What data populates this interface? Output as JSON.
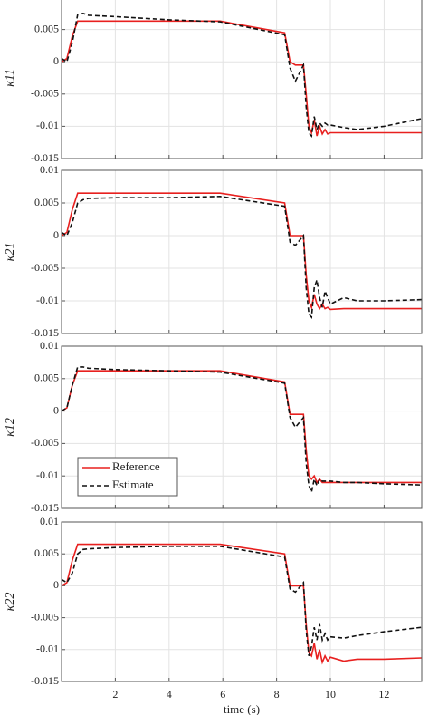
{
  "chart_data": [
    {
      "type": "line",
      "ylabel": "κ11",
      "x": [
        0,
        0.2,
        0.4,
        0.6,
        0.8,
        1,
        2,
        4,
        5.9,
        8.3,
        8.5,
        8.7,
        9.0,
        9.1,
        9.2,
        9.3,
        9.4,
        9.5,
        9.6,
        9.7,
        9.8,
        9.9,
        10,
        10.5,
        11,
        12,
        13.4
      ],
      "xlim": [
        0,
        13.4
      ],
      "xticks": [
        2,
        4,
        6,
        8,
        10,
        12
      ],
      "ylim": [
        -0.015,
        0.01
      ],
      "yticks": [
        -0.015,
        -0.01,
        -0.005,
        0,
        0.005,
        0.01
      ],
      "grid": true,
      "series": [
        {
          "name": "Reference",
          "color": "#e8201f",
          "dash": false,
          "values": [
            0,
            0.0005,
            0.004,
            0.0063,
            0.0063,
            0.0063,
            0.0063,
            0.0063,
            0.0063,
            0.0045,
            0,
            -0.0005,
            -0.0005,
            -0.005,
            -0.01,
            -0.011,
            -0.009,
            -0.0115,
            -0.01,
            -0.0112,
            -0.0105,
            -0.0112,
            -0.011,
            -0.011,
            -0.011,
            -0.011,
            -0.011
          ]
        },
        {
          "name": "Estimate",
          "color": "#111111",
          "dash": true,
          "values": [
            0.0005,
            0,
            0.003,
            0.0073,
            0.0075,
            0.0072,
            0.007,
            0.0065,
            0.0062,
            0.0042,
            -0.001,
            -0.003,
            -0.0005,
            -0.007,
            -0.011,
            -0.0115,
            -0.0085,
            -0.0105,
            -0.0095,
            -0.01,
            -0.0095,
            -0.0098,
            -0.0098,
            -0.0102,
            -0.0105,
            -0.01,
            -0.0088
          ]
        }
      ]
    },
    {
      "type": "line",
      "ylabel": "κ21",
      "x": [
        0,
        0.2,
        0.4,
        0.6,
        0.8,
        1,
        2,
        4,
        5.9,
        8.3,
        8.5,
        8.7,
        9.0,
        9.1,
        9.2,
        9.3,
        9.4,
        9.5,
        9.6,
        9.7,
        9.8,
        9.9,
        10,
        10.5,
        11,
        12,
        13.4
      ],
      "xlim": [
        0,
        13.4
      ],
      "xticks": [
        2,
        4,
        6,
        8,
        10,
        12
      ],
      "ylim": [
        -0.015,
        0.01
      ],
      "yticks": [
        -0.015,
        -0.01,
        -0.005,
        0,
        0.005,
        0.01
      ],
      "grid": true,
      "series": [
        {
          "name": "Reference",
          "color": "#e8201f",
          "dash": false,
          "values": [
            0,
            0.0005,
            0.004,
            0.0065,
            0.0065,
            0.0065,
            0.0065,
            0.0065,
            0.0065,
            0.005,
            0,
            0,
            0,
            -0.006,
            -0.01,
            -0.011,
            -0.009,
            -0.0105,
            -0.0112,
            -0.0105,
            -0.0112,
            -0.011,
            -0.0113,
            -0.0112,
            -0.0112,
            -0.0112,
            -0.0112
          ]
        },
        {
          "name": "Estimate",
          "color": "#111111",
          "dash": true,
          "values": [
            0.0005,
            0,
            0.002,
            0.005,
            0.0055,
            0.0057,
            0.0058,
            0.0058,
            0.006,
            0.0045,
            -0.001,
            -0.0015,
            0,
            -0.008,
            -0.012,
            -0.0125,
            -0.008,
            -0.0068,
            -0.0095,
            -0.011,
            -0.0085,
            -0.0095,
            -0.0105,
            -0.0095,
            -0.01,
            -0.01,
            -0.0098
          ]
        }
      ]
    },
    {
      "type": "line",
      "ylabel": "κ12",
      "x": [
        0,
        0.2,
        0.4,
        0.6,
        0.8,
        1,
        2,
        4,
        5.9,
        8.3,
        8.5,
        8.7,
        9.0,
        9.1,
        9.2,
        9.3,
        9.4,
        9.5,
        9.6,
        9.7,
        9.8,
        9.9,
        10,
        10.5,
        11,
        12,
        13.4
      ],
      "xlim": [
        0,
        13.4
      ],
      "xticks": [
        2,
        4,
        6,
        8,
        10,
        12
      ],
      "ylim": [
        -0.015,
        0.01
      ],
      "yticks": [
        -0.015,
        -0.01,
        -0.005,
        0,
        0.005,
        0.01
      ],
      "grid": true,
      "legend": "lower left",
      "series": [
        {
          "name": "Reference",
          "color": "#e8201f",
          "dash": false,
          "values": [
            0,
            0.0005,
            0.004,
            0.0062,
            0.0062,
            0.0062,
            0.0062,
            0.0062,
            0.0062,
            0.0045,
            -0.0005,
            -0.0005,
            -0.0005,
            -0.006,
            -0.01,
            -0.0105,
            -0.01,
            -0.011,
            -0.0105,
            -0.011,
            -0.011,
            -0.011,
            -0.011,
            -0.011,
            -0.011,
            -0.011,
            -0.011
          ]
        },
        {
          "name": "Estimate",
          "color": "#111111",
          "dash": true,
          "values": [
            0,
            0.0005,
            0.004,
            0.0068,
            0.0068,
            0.0066,
            0.0064,
            0.0062,
            0.006,
            0.0043,
            -0.001,
            -0.0025,
            -0.001,
            -0.008,
            -0.0115,
            -0.0125,
            -0.0105,
            -0.0115,
            -0.0105,
            -0.0108,
            -0.0108,
            -0.0108,
            -0.0108,
            -0.011,
            -0.011,
            -0.0112,
            -0.0114
          ]
        }
      ]
    },
    {
      "type": "line",
      "ylabel": "κ22",
      "xlabel": "time (s)",
      "x": [
        0,
        0.2,
        0.4,
        0.6,
        0.8,
        1,
        2,
        4,
        5.9,
        8.3,
        8.5,
        8.7,
        9.0,
        9.1,
        9.2,
        9.3,
        9.4,
        9.5,
        9.6,
        9.7,
        9.8,
        9.9,
        10,
        10.5,
        11,
        12,
        13.4
      ],
      "xlim": [
        0,
        13.4
      ],
      "xticks": [
        2,
        4,
        6,
        8,
        10,
        12
      ],
      "ylim": [
        -0.015,
        0.01
      ],
      "yticks": [
        -0.015,
        -0.01,
        -0.005,
        0,
        0.005,
        0.01
      ],
      "grid": true,
      "series": [
        {
          "name": "Reference",
          "color": "#e8201f",
          "dash": false,
          "values": [
            0,
            0.0005,
            0.004,
            0.0065,
            0.0065,
            0.0065,
            0.0065,
            0.0065,
            0.0065,
            0.005,
            0,
            0,
            0,
            -0.006,
            -0.0105,
            -0.011,
            -0.009,
            -0.0115,
            -0.01,
            -0.012,
            -0.011,
            -0.0118,
            -0.0112,
            -0.0118,
            -0.0115,
            -0.0115,
            -0.0113
          ]
        },
        {
          "name": "Estimate",
          "color": "#111111",
          "dash": true,
          "values": [
            0.001,
            0.0005,
            0.002,
            0.005,
            0.0057,
            0.0058,
            0.006,
            0.0062,
            0.0062,
            0.0045,
            -0.0005,
            -0.001,
            0.0005,
            -0.007,
            -0.011,
            -0.0095,
            -0.0065,
            -0.0085,
            -0.006,
            -0.0085,
            -0.0075,
            -0.0085,
            -0.008,
            -0.0082,
            -0.0078,
            -0.0072,
            -0.0065
          ]
        }
      ]
    }
  ]
}
